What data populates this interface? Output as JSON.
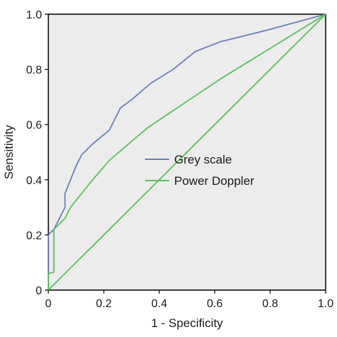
{
  "chart_data": {
    "type": "line",
    "xlabel": "1 - Specificity",
    "ylabel": "Sensitivity",
    "xlim": [
      0,
      1
    ],
    "ylim": [
      0,
      1
    ],
    "xticks": [
      "0",
      "0.2",
      "0.4",
      "0.6",
      "0.8",
      "1.0"
    ],
    "yticks": [
      "0",
      "0.2",
      "0.4",
      "0.6",
      "0.8",
      "1.0"
    ],
    "background": "#ececec",
    "grid": false,
    "legend_position": "center-right",
    "series": [
      {
        "name": "Grey scale",
        "color": "#6b7fba",
        "x": [
          0,
          0,
          0.02,
          0.04,
          0.06,
          0.06,
          0.08,
          0.1,
          0.12,
          0.16,
          0.22,
          0.26,
          0.3,
          0.37,
          0.45,
          0.53,
          0.62,
          0.78,
          1.0
        ],
        "y": [
          0,
          0.2,
          0.22,
          0.26,
          0.3,
          0.35,
          0.4,
          0.45,
          0.49,
          0.53,
          0.58,
          0.66,
          0.69,
          0.75,
          0.8,
          0.865,
          0.9,
          0.94,
          1.0
        ]
      },
      {
        "name": "Power Doppler",
        "color": "#5cbf5c",
        "x": [
          0,
          0,
          0.02,
          0.02,
          0.04,
          0.06,
          0.08,
          0.16,
          0.22,
          0.36,
          0.62,
          1.0
        ],
        "y": [
          0,
          0.06,
          0.065,
          0.22,
          0.24,
          0.26,
          0.3,
          0.4,
          0.47,
          0.59,
          0.765,
          1.0
        ]
      },
      {
        "name": "",
        "color": "#5cbf5c",
        "x": [
          0,
          1
        ],
        "y": [
          0,
          1
        ]
      }
    ]
  }
}
